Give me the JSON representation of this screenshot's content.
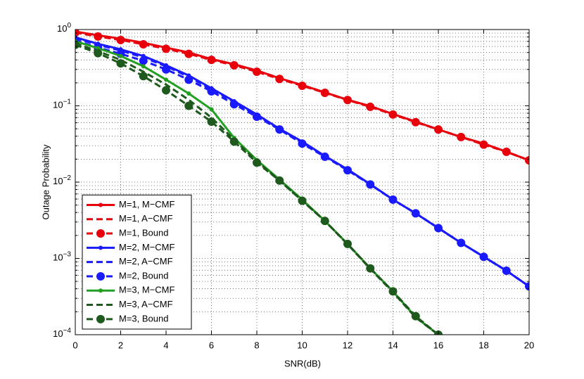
{
  "chart_data": {
    "type": "line",
    "xlabel": "SNR(dB)",
    "ylabel": "Outage Probability",
    "x": [
      0,
      1,
      2,
      3,
      4,
      5,
      6,
      7,
      8,
      9,
      10,
      11,
      12,
      13,
      14,
      15,
      16,
      17,
      18,
      19,
      20
    ],
    "xlim": [
      0,
      20
    ],
    "xticks": [
      0,
      2,
      4,
      6,
      8,
      10,
      12,
      14,
      16,
      18,
      20
    ],
    "ylim": [
      0.0001,
      1
    ],
    "log_y": true,
    "yticks": [
      {
        "value": 0.0001,
        "label": "10^-4"
      },
      {
        "value": 0.001,
        "label": "10^-3"
      },
      {
        "value": 0.01,
        "label": "10^-2"
      },
      {
        "value": 0.1,
        "label": "10^-1"
      },
      {
        "value": 1,
        "label": "10^0"
      }
    ],
    "grid": true,
    "minor_grid": true,
    "legend": "lower left",
    "series": [
      {
        "name": "M=1, M−CMF",
        "color": "#e8000b",
        "style": "solid",
        "marker": "dot",
        "values": [
          0.94,
          0.84,
          0.76,
          0.67,
          0.58,
          0.5,
          0.41,
          0.35,
          0.29,
          0.23,
          0.187,
          0.15,
          0.12,
          0.099,
          0.078,
          0.062,
          0.049,
          0.039,
          0.032,
          0.025,
          0.0193
        ]
      },
      {
        "name": "M=1, A−CMF",
        "color": "#e8000b",
        "style": "dashed",
        "marker": "none",
        "values": [
          0.93,
          0.83,
          0.75,
          0.66,
          0.57,
          0.49,
          0.41,
          0.35,
          0.29,
          0.23,
          0.187,
          0.15,
          0.12,
          0.099,
          0.078,
          0.062,
          0.049,
          0.039,
          0.032,
          0.025,
          0.0193
        ]
      },
      {
        "name": "M=1, Bound",
        "color": "#e8000b",
        "style": "dashed",
        "marker": "circle",
        "values": [
          0.91,
          0.81,
          0.73,
          0.64,
          0.56,
          0.48,
          0.4,
          0.34,
          0.28,
          0.225,
          0.183,
          0.148,
          0.119,
          0.097,
          0.077,
          0.061,
          0.049,
          0.039,
          0.031,
          0.025,
          0.0193
        ]
      },
      {
        "name": "M=2, M−CMF",
        "color": "#1a1aff",
        "style": "solid",
        "marker": "dot",
        "values": [
          0.79,
          0.65,
          0.55,
          0.45,
          0.34,
          0.25,
          0.17,
          0.115,
          0.077,
          0.05,
          0.034,
          0.022,
          0.0147,
          0.0094,
          0.0059,
          0.0039,
          0.0025,
          0.0016,
          0.00105,
          0.00069,
          0.00043
        ]
      },
      {
        "name": "M=2, A−CMF",
        "color": "#1a1aff",
        "style": "dashed",
        "marker": "none",
        "values": [
          0.77,
          0.63,
          0.53,
          0.43,
          0.33,
          0.24,
          0.165,
          0.112,
          0.075,
          0.049,
          0.033,
          0.022,
          0.0145,
          0.0093,
          0.0059,
          0.0039,
          0.0025,
          0.0016,
          0.00105,
          0.00069,
          0.00043
        ]
      },
      {
        "name": "M=2, Bound",
        "color": "#1a1aff",
        "style": "dashed",
        "marker": "circle",
        "values": [
          0.72,
          0.58,
          0.48,
          0.39,
          0.3,
          0.22,
          0.155,
          0.105,
          0.072,
          0.049,
          0.032,
          0.0215,
          0.0143,
          0.0093,
          0.0059,
          0.0039,
          0.0025,
          0.0016,
          0.00105,
          0.00069,
          0.00043
        ]
      },
      {
        "name": "M=3, M−CMF",
        "color": "#22a022",
        "style": "solid",
        "marker": "dot",
        "values": [
          0.7,
          0.57,
          0.45,
          0.33,
          0.22,
          0.145,
          0.09,
          0.038,
          0.0195,
          0.0108,
          0.0059,
          0.0031,
          0.00155,
          0.00074,
          0.00037,
          0.00017,
          0.0001,
          null,
          null,
          null,
          null
        ]
      },
      {
        "name": "M=3, A−CMF",
        "color": "#1e5a1e",
        "style": "dashed",
        "marker": "none",
        "values": [
          0.66,
          0.52,
          0.4,
          0.28,
          0.19,
          0.12,
          0.07,
          0.036,
          0.0188,
          0.0105,
          0.0057,
          0.0031,
          0.00153,
          0.00073,
          0.00036,
          0.000168,
          0.0001,
          null,
          null,
          null,
          null
        ]
      },
      {
        "name": "M=3, Bound",
        "color": "#1e5a1e",
        "style": "dashed",
        "marker": "circle",
        "values": [
          0.63,
          0.49,
          0.36,
          0.245,
          0.16,
          0.1,
          0.062,
          0.034,
          0.018,
          0.0105,
          0.0057,
          0.0031,
          0.00155,
          0.00074,
          0.00037,
          0.000175,
          0.0001,
          null,
          null,
          null,
          null
        ]
      }
    ]
  }
}
